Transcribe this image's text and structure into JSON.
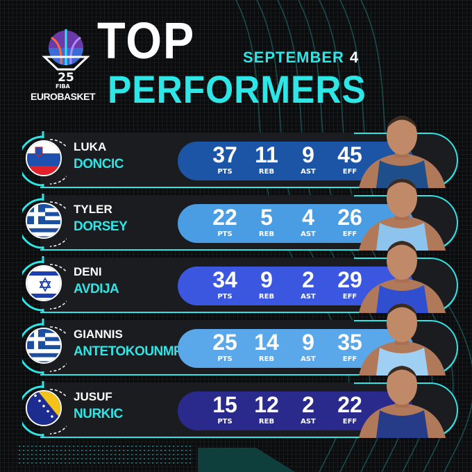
{
  "brand": {
    "logo_number": "25",
    "fiba": "FIBA",
    "name": "EUROBASKET"
  },
  "title": {
    "line1": "TOP",
    "line2": "PERFORMERS",
    "date_month": "SEPTEMBER",
    "date_day": "4"
  },
  "stat_labels": [
    "PTS",
    "REB",
    "AST",
    "EFF"
  ],
  "colors": {
    "accent": "#2ee6e6",
    "background": "#0b0c0e",
    "panel": "#1b1c20"
  },
  "players": [
    {
      "first": "LUKA",
      "last": "DONCIC",
      "flag": "slovenia",
      "pill_color": "#1d55a6",
      "jersey": "#1f4f8a",
      "stats": [
        "37",
        "11",
        "9",
        "45"
      ]
    },
    {
      "first": "TYLER",
      "last": "DORSEY",
      "flag": "greece",
      "pill_color": "#4b9de3",
      "jersey": "#8cc4ee",
      "stats": [
        "22",
        "5",
        "4",
        "26"
      ]
    },
    {
      "first": "DENI",
      "last": "AVDIJA",
      "flag": "israel",
      "pill_color": "#3b57df",
      "jersey": "#2f4fd0",
      "stats": [
        "34",
        "9",
        "2",
        "29"
      ]
    },
    {
      "first": "GIANNIS",
      "last": "ANTETOKOUNMPO",
      "flag": "greece",
      "pill_color": "#5aa7e9",
      "jersey": "#9fcff2",
      "stats": [
        "25",
        "14",
        "9",
        "35"
      ]
    },
    {
      "first": "JUSUF",
      "last": "NURKIC",
      "flag": "bosnia",
      "pill_color": "#2a2a8c",
      "jersey": "#263c88",
      "stats": [
        "15",
        "12",
        "2",
        "22"
      ]
    }
  ]
}
